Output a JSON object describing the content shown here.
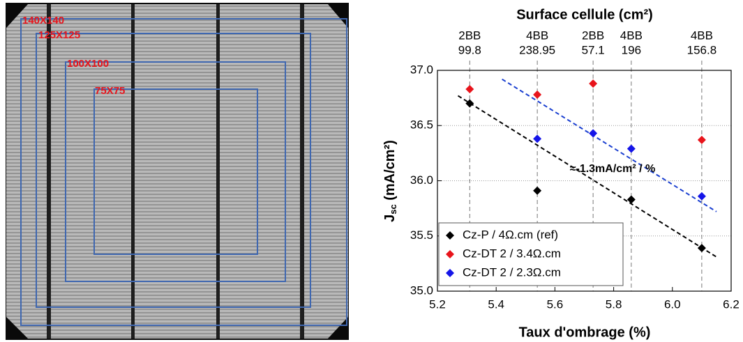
{
  "image_labels": [
    "140X140",
    "125X125",
    "100X100",
    "75X75"
  ],
  "chart_data": {
    "type": "scatter",
    "top_axis": {
      "title": "Surface cellule (cm²)",
      "ticks": [
        {
          "x": 5.31,
          "busbar": "2BB",
          "surface": 99.8
        },
        {
          "x": 5.54,
          "busbar": "4BB",
          "surface": 238.95
        },
        {
          "x": 5.73,
          "busbar": "2BB",
          "surface": 57.1
        },
        {
          "x": 5.86,
          "busbar": "4BB",
          "surface": 196
        },
        {
          "x": 6.1,
          "busbar": "4BB",
          "surface": 156.8
        }
      ]
    },
    "xlabel": "Taux d'ombrage (%)",
    "ylabel": [
      "J",
      "sc",
      " (mA/cm²)"
    ],
    "xlim": [
      5.2,
      6.2
    ],
    "xticks": [
      5.2,
      5.4,
      5.6,
      5.8,
      {
        "value": 6,
        "label": "6.0"
      },
      6.2
    ],
    "ylim": [
      35,
      37
    ],
    "yticks": [
      {
        "value": 35,
        "label": "35.0"
      },
      35.5,
      {
        "value": 36,
        "label": "36.0"
      },
      36.5,
      {
        "value": 37,
        "label": "37.0"
      }
    ],
    "grid": true,
    "legend": "lower left",
    "series": [
      {
        "name": "Cz-P / 4Ω.cm (ref)",
        "color": "#000000",
        "x": [
          5.31,
          5.54,
          5.86,
          6.1
        ],
        "values": [
          36.7,
          35.91,
          35.83,
          35.39
        ]
      },
      {
        "name": "Cz-DT 2 / 3.4Ω.cm",
        "color": "#e8141b",
        "x": [
          5.31,
          5.54,
          5.73,
          6.1
        ],
        "values": [
          36.83,
          36.78,
          36.88,
          36.37
        ]
      },
      {
        "name": "Cz-DT 2 / 2.3Ω.cm",
        "color": "#1515e8",
        "x": [
          5.54,
          5.73,
          5.86,
          6.1
        ],
        "values": [
          36.38,
          36.43,
          36.29,
          35.86
        ]
      }
    ],
    "trendlines": [
      {
        "color": "#000000",
        "x": [
          5.27,
          6.15
        ],
        "values": [
          36.77,
          35.31
        ]
      },
      {
        "color": "#1a3fd0",
        "x": [
          5.42,
          6.15
        ],
        "values": [
          36.92,
          35.72
        ]
      }
    ],
    "annotation": "≈-1.3mA/cm² / %"
  }
}
